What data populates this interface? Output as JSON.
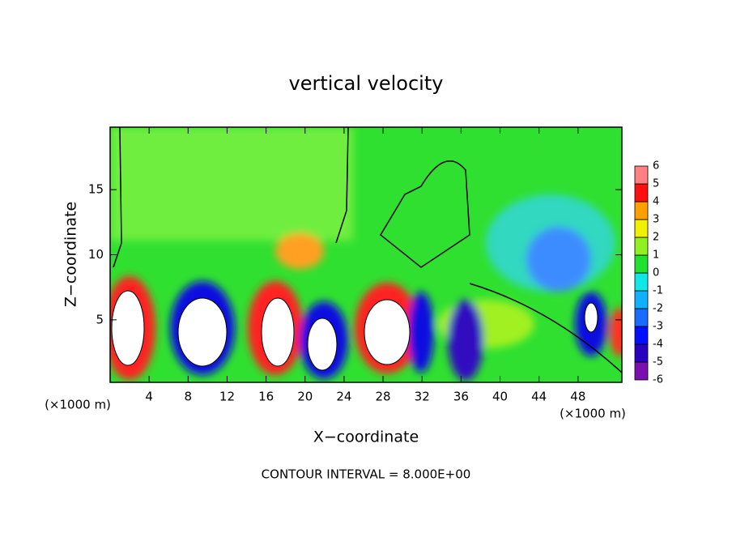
{
  "chart_data": {
    "type": "contour",
    "title": "vertical velocity",
    "x_label": "X−coordinate",
    "y_label": "Z−coordinate",
    "x_unit": "(×1000 m)",
    "footnote": "CONTOUR INTERVAL = 8.000E+00",
    "xlim": [
      0,
      52.5
    ],
    "xticks": [
      4,
      8,
      12,
      16,
      20,
      24,
      28,
      32,
      36,
      40,
      44,
      48
    ],
    "ylim": [
      0.2,
      19.8
    ],
    "yticks": [
      5,
      10,
      15
    ],
    "colorbar": {
      "ticks": [
        -6,
        -5,
        -4,
        -3,
        -2,
        -1,
        0,
        1,
        2,
        3,
        4,
        5,
        6
      ],
      "colors": [
        "#7a10b0",
        "#2a00c0",
        "#0010ff",
        "#1a6cff",
        "#10b0ff",
        "#10e8e8",
        "#20e030",
        "#90f020",
        "#f0f000",
        "#ffa000",
        "#ff1010",
        "#ff8080"
      ]
    }
  }
}
